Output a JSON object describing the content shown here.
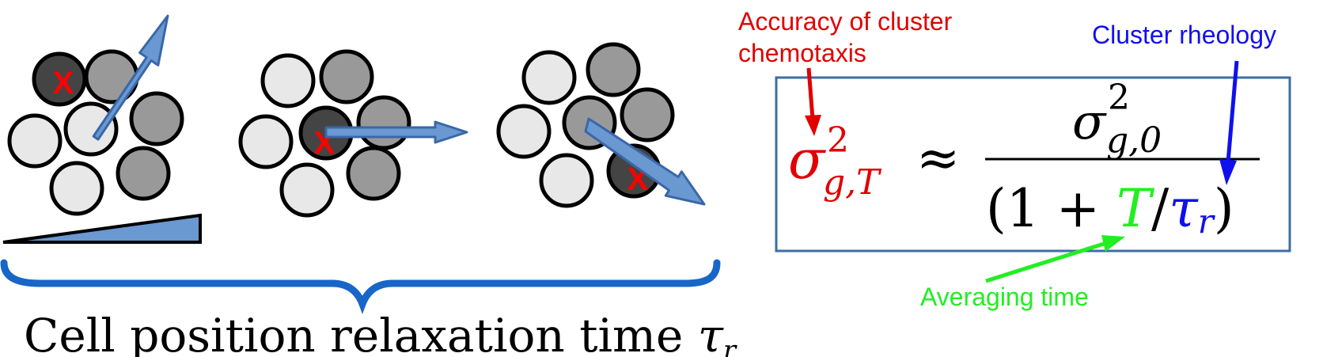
{
  "colors": {
    "cell_light": "#e8e8e8",
    "cell_mid": "#999999",
    "cell_dark": "#444444",
    "arrow_fill": "#6a98d0",
    "arrow_stroke": "#3a67a8",
    "marker": "#ff0000",
    "brace": "#1866c8",
    "box": "#3c6ea6",
    "red": "#e00000",
    "blue": "#1010ee",
    "green": "#22ee22"
  },
  "marker_text": "X",
  "relaxation_label": {
    "text": "Cell position relaxation time ",
    "symbol": "τ",
    "subscript": "r"
  },
  "annotations": {
    "accuracy_line1": "Accuracy of cluster",
    "accuracy_line2": "chemotaxis",
    "rheology": "Cluster rheology",
    "averaging": "Averaging time"
  },
  "formula": {
    "lhs_symbol": "σ",
    "lhs_sup": "2",
    "lhs_sub": "g,T",
    "approx": "≈",
    "num_symbol": "σ",
    "num_sup": "2",
    "num_sub": "g,0",
    "den_open": "(1 + ",
    "den_T": "T",
    "den_slash": "/",
    "den_tau": "τ",
    "den_tau_sub": "r",
    "den_close": ")"
  }
}
